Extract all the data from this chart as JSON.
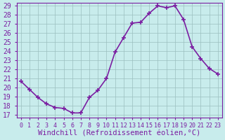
{
  "x": [
    0,
    1,
    2,
    3,
    4,
    5,
    6,
    7,
    8,
    9,
    10,
    11,
    12,
    13,
    14,
    15,
    16,
    17,
    18,
    19,
    20,
    21,
    22,
    23
  ],
  "y": [
    20.7,
    19.8,
    18.9,
    18.2,
    17.8,
    17.7,
    17.2,
    17.2,
    18.9,
    19.7,
    21.0,
    23.9,
    25.5,
    27.1,
    27.2,
    28.2,
    29.0,
    28.8,
    29.0,
    27.5,
    24.5,
    23.2,
    22.1,
    21.5
  ],
  "line_color": "#7b1fa2",
  "marker": "+",
  "marker_size": 5,
  "line_width": 1.2,
  "bg_color": "#c8ecec",
  "grid_color": "#9bbfbf",
  "axis_color": "#7b1fa2",
  "tick_color": "#7b1fa2",
  "xlabel": "Windchill (Refroidissement éolien,°C)",
  "font_color": "#7b1fa2",
  "font_size": 7,
  "xlabel_fontsize": 7.5,
  "ylim": [
    17,
    29
  ],
  "xlim": [
    -0.5,
    23.5
  ],
  "yticks": [
    17,
    18,
    19,
    20,
    21,
    22,
    23,
    24,
    25,
    26,
    27,
    28,
    29
  ],
  "xticks": [
    0,
    1,
    2,
    3,
    4,
    5,
    6,
    7,
    8,
    9,
    10,
    11,
    12,
    13,
    14,
    15,
    16,
    17,
    18,
    19,
    20,
    21,
    22,
    23
  ],
  "xtick_labels": [
    "0",
    "1",
    "2",
    "3",
    "4",
    "5",
    "6",
    "7",
    "8",
    "9",
    "10",
    "11",
    "12",
    "13",
    "14",
    "15",
    "16",
    "17",
    "18",
    "19",
    "20",
    "21",
    "22",
    "23"
  ]
}
